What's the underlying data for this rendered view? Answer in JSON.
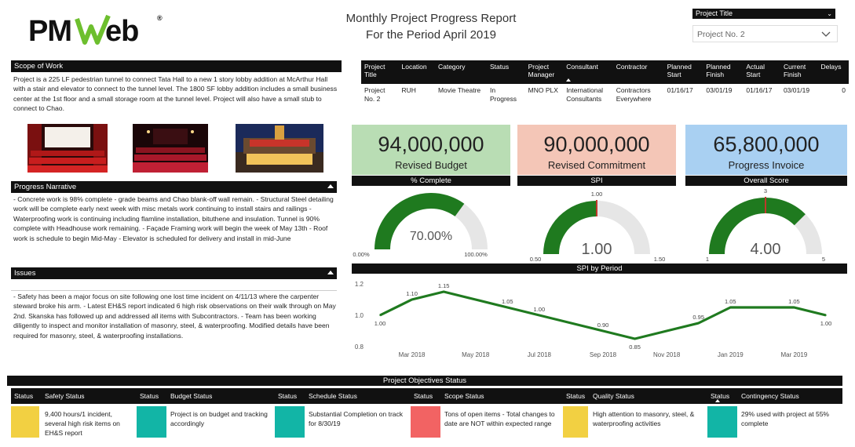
{
  "header": {
    "logo_text": "PMWeb",
    "title_line1": "Monthly Project Progress Report",
    "title_line2": "For the Period April 2019"
  },
  "filter": {
    "label": "Project Title",
    "value": "Project No. 2"
  },
  "scope": {
    "heading": "Scope of Work",
    "text": "Project is a 225 LF pedestrian tunnel to connect Tata Hall to a new 1 story lobby addition at McArthur Hall with a stair and elevator to connect to the tunnel level. The 1800 SF lobby addition includes a small business center at the 1st floor and a small storage room at the tunnel level. Project will also have a small stub to connect to Chao."
  },
  "narrative": {
    "heading": "Progress Narrative",
    "text": "- Concrete work is 98% complete - grade beams and Chao blank-off wall remain. - Structural Steel detailing work will be complete early next week with misc metals work continuing to install stairs and railings - Waterproofing work is continuing including flamline installation, bituthene and insulation. Tunnel is 90% complete with Headhouse work remaining. - Façade Framing work will begin the week of May 13th - Roof work is schedule to begin Mid-May - Elevator is scheduled for delivery and install in mid-June"
  },
  "issues": {
    "heading": "Issues",
    "text": "- Safety has been a major focus on site following one lost time incident on 4/11/13 where the carpenter steward broke his arm. - Latest EH&S report indicated 6 high risk observations on their walk through on May 2nd. Skanska has followed up and addressed all items with Subcontractors. - Team has been working diligently to inspect and monitor installation of masonry, steel, & waterproofing. Modified details have been required for masonry, steel, & waterproofing installations."
  },
  "project_table": {
    "columns": [
      "Project Title",
      "Location",
      "Category",
      "Status",
      "Project Manager",
      "Consultant",
      "Contractor",
      "Planned Start",
      "Planned Finish",
      "Actual Start",
      "Current Finish",
      "Delays"
    ],
    "row": [
      "Project No. 2",
      "RUH",
      "Movie Theatre",
      "In Progress",
      "MNO PLX",
      "International Consultants",
      "Contractors Everywhere",
      "01/16/17",
      "03/01/19",
      "01/16/17",
      "03/01/19",
      "0"
    ]
  },
  "kpis": [
    {
      "value": "94,000,000",
      "label": "Revised Budget",
      "color": "#b9ddb4"
    },
    {
      "value": "90,000,000",
      "label": "Revised Commitment",
      "color": "#f4c6b7"
    },
    {
      "value": "65,800,000",
      "label": "Progress Invoice",
      "color": "#a9d0f2"
    }
  ],
  "gauges": [
    {
      "title": "% Complete",
      "value": 70,
      "min": 0,
      "max": 100,
      "display": "70.00%",
      "min_label": "0.00%",
      "max_label": "100.00%",
      "target_label": ""
    },
    {
      "title": "SPI",
      "value": 1.0,
      "min": 0.5,
      "max": 1.5,
      "target": 1.0,
      "display": "1.00",
      "min_label": "0.50",
      "max_label": "1.50",
      "target_label": "1.00"
    },
    {
      "title": "Overall Score",
      "value": 4.0,
      "min": 1,
      "max": 5,
      "target": 3,
      "display": "4.00",
      "min_label": "1",
      "max_label": "5",
      "target_label": "3"
    }
  ],
  "chart_data": {
    "type": "line",
    "title": "SPI by Period",
    "x": [
      "Feb 2018",
      "Mar 2018",
      "Apr 2018",
      "May 2018",
      "Jun 2018",
      "Jul 2018",
      "Aug 2018",
      "Sep 2018",
      "Oct 2018",
      "Nov 2018",
      "Dec 2018",
      "Jan 2019",
      "Feb 2019",
      "Mar 2019",
      "Apr 2019"
    ],
    "values": [
      1.0,
      1.1,
      1.15,
      1.1,
      1.05,
      1.0,
      0.95,
      0.9,
      0.85,
      0.9,
      0.95,
      1.05,
      1.05,
      1.05,
      1.0
    ],
    "data_labels": [
      "1.00",
      "1.10",
      "1.15",
      "",
      "1.05",
      "1.00",
      "",
      "0.90",
      "0.85",
      "",
      "0.95",
      "1.05",
      "",
      "1.05",
      "1.00"
    ],
    "tick_labels": [
      "Mar 2018",
      "May 2018",
      "Jul 2018",
      "Sep 2018",
      "Nov 2018",
      "Jan 2019",
      "Mar 2019"
    ],
    "tick_index": [
      1,
      3,
      5,
      7,
      9,
      11,
      13
    ],
    "ylim": [
      0.8,
      1.2
    ],
    "yticks": [
      0.8,
      1.0,
      1.2
    ],
    "ytick_labels": [
      "0.8",
      "1.0",
      "1.2"
    ],
    "color": "#1f7a1f"
  },
  "objectives": {
    "heading": "Project Objectives Status",
    "status_label": "Status",
    "items": [
      {
        "title": "Safety Status",
        "text": "9,400 hours/1 incident, several high risk items on EH&S report",
        "color": "#f2d042"
      },
      {
        "title": "Budget Status",
        "text": "Project is on budget and tracking accordingly",
        "color": "#12b5a6"
      },
      {
        "title": "Schedule Status",
        "text": "Substantial Completion on track for 8/30/19",
        "color": "#12b5a6"
      },
      {
        "title": "Scope Status",
        "text": "Tons of open items - Total changes to date are NOT within expected range",
        "color": "#f26363"
      },
      {
        "title": "Quality Status",
        "text": "High attention to masonry, steel, & waterproofing activities",
        "color": "#f2d042"
      },
      {
        "title": "Contingency Status",
        "text": "29% used with project at 55% complete",
        "color": "#12b5a6"
      }
    ]
  }
}
